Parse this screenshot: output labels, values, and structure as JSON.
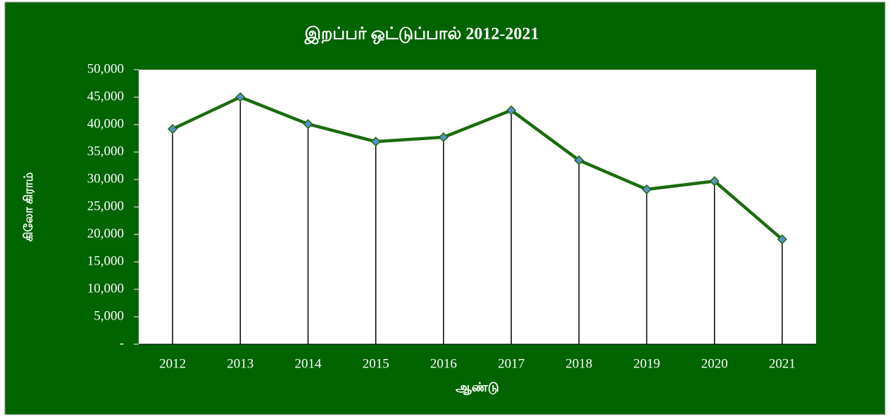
{
  "chart_data": {
    "type": "line",
    "title": "இறப்பர் ஒட்டுப்பால் 2012-2021",
    "x_label": "ஆண்டு",
    "y_label": "கிலோ கிராம்",
    "categories": [
      "2012",
      "2013",
      "2014",
      "2015",
      "2016",
      "2017",
      "2018",
      "2019",
      "2020",
      "2021"
    ],
    "series": [
      {
        "name": "இறப்பர் ஒட்டுப்பால்",
        "color": "#1b6b0c",
        "marker_color": "#5b8fc9",
        "values": [
          39200,
          45000,
          40100,
          36900,
          37700,
          42600,
          33500,
          28200,
          29700,
          19100
        ]
      }
    ],
    "ylim": [
      0,
      50000
    ],
    "yticks": [
      {
        "value": 0,
        "label": "-"
      },
      {
        "value": 5000,
        "label": "5,000"
      },
      {
        "value": 10000,
        "label": "10,000"
      },
      {
        "value": 15000,
        "label": "15,000"
      },
      {
        "value": 20000,
        "label": "20,000"
      },
      {
        "value": 25000,
        "label": "25,000"
      },
      {
        "value": 30000,
        "label": "30,000"
      },
      {
        "value": 35000,
        "label": "35,000"
      },
      {
        "value": 40000,
        "label": "40,000"
      },
      {
        "value": 45000,
        "label": "45,000"
      },
      {
        "value": 50000,
        "label": "50,000"
      }
    ],
    "drop_lines": true
  }
}
